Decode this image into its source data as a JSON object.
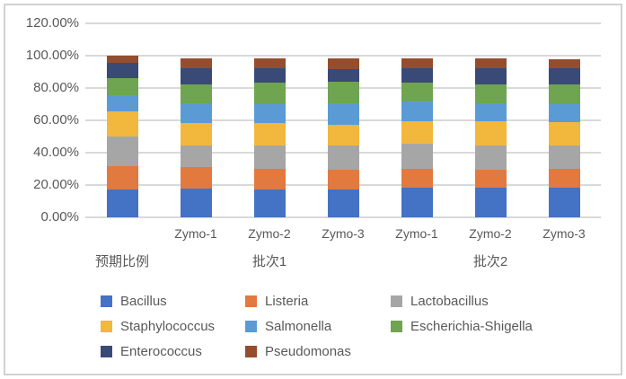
{
  "chart_data": {
    "type": "bar",
    "stacked": true,
    "title": "",
    "xlabel": "",
    "ylabel": "",
    "unit": "percent",
    "grid": true,
    "legend_position": "bottom",
    "ylim": [
      0,
      120
    ],
    "yticks": [
      {
        "value": 0,
        "label": "0.00%"
      },
      {
        "value": 20,
        "label": "20.00%"
      },
      {
        "value": 40,
        "label": "40.00%"
      },
      {
        "value": 60,
        "label": "60.00%"
      },
      {
        "value": 80,
        "label": "80.00%"
      },
      {
        "value": 100,
        "label": "100.00%"
      },
      {
        "value": 120,
        "label": "120.00%"
      }
    ],
    "category_sublabels": [
      "",
      "Zymo-1",
      "Zymo-2",
      "Zymo-3",
      "Zymo-1",
      "Zymo-2",
      "Zymo-3"
    ],
    "category_groups": [
      {
        "label": "预期比例",
        "start": 0,
        "count": 1
      },
      {
        "label": "批次1",
        "start": 1,
        "count": 3
      },
      {
        "label": "批次2",
        "start": 4,
        "count": 3
      }
    ],
    "series": [
      {
        "name": "Bacillus",
        "color": "#4472C4",
        "values": [
          17.4,
          18.0,
          17.5,
          17.0,
          18.1,
          18.1,
          18.1
        ]
      },
      {
        "name": "Listeria",
        "color": "#E2793F",
        "values": [
          14.1,
          13.3,
          12.4,
          12.5,
          11.9,
          11.4,
          11.8
        ]
      },
      {
        "name": "Lactobacillus",
        "color": "#A6A6A6",
        "values": [
          18.4,
          13.3,
          14.7,
          14.7,
          15.5,
          15.1,
          14.7
        ]
      },
      {
        "name": "Staphylococcus",
        "color": "#F2B73D",
        "values": [
          15.5,
          13.8,
          13.8,
          12.9,
          14.0,
          14.8,
          14.4
        ]
      },
      {
        "name": "Salmonella",
        "color": "#5B9BD5",
        "values": [
          10.4,
          12.0,
          11.6,
          13.3,
          12.0,
          11.0,
          11.0
        ]
      },
      {
        "name": "Escherichia-Shigella",
        "color": "#6FA451",
        "values": [
          10.1,
          12.0,
          13.5,
          13.5,
          11.8,
          11.6,
          12.4
        ]
      },
      {
        "name": "Enterococcus",
        "color": "#394A77",
        "values": [
          9.9,
          10.1,
          8.7,
          7.9,
          8.9,
          10.2,
          9.8
        ]
      },
      {
        "name": "Pseudomonas",
        "color": "#944D2D",
        "values": [
          4.2,
          5.6,
          5.9,
          6.3,
          5.9,
          5.9,
          5.5
        ]
      }
    ],
    "style_colors": {
      "axis_text": "#595959",
      "gridline": "#d9d9d9",
      "chart_border": "#d2d2d2",
      "background": "#ffffff"
    }
  }
}
